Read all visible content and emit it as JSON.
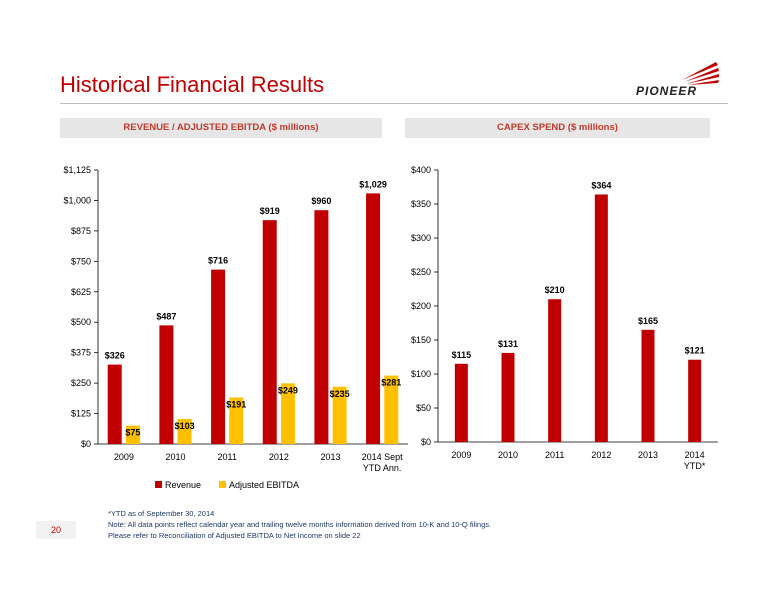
{
  "page": {
    "title": "Historical Financial Results",
    "logo_text": "PIONEER",
    "page_number": "20"
  },
  "banners": {
    "left": "REVENUE / ADJUSTED EBITDA ($ millions)",
    "right": "CAPEX SPEND ($ millions)"
  },
  "notes": [
    "*YTD as of September 30, 2014",
    "Note: All data points reflect calendar year and trailing twelve months information derived from 10-K and 10-Q filings.",
    "Please refer to Reconciliation of Adjusted EBITDA to Net Income on slide 22"
  ],
  "colors": {
    "accent": "#c00000",
    "revenue": "#c00000",
    "ebitda": "#ffc000",
    "capex": "#c00000"
  },
  "chart_data": [
    {
      "type": "bar",
      "categories": [
        "2009",
        "2010",
        "2011",
        "2012",
        "2013",
        "2014 Sept YTD Ann."
      ],
      "series": [
        {
          "name": "Revenue",
          "values": [
            326,
            487,
            716,
            919,
            960,
            1029
          ],
          "labels": [
            "$326",
            "$487",
            "$716",
            "$919",
            "$960",
            "$1,029"
          ]
        },
        {
          "name": "Adjusted EBITDA",
          "values": [
            75,
            103,
            191,
            249,
            235,
            281
          ],
          "labels": [
            "$75",
            "$103",
            "$191",
            "$249",
            "$235",
            "$281"
          ]
        }
      ],
      "ylim": [
        0,
        1125
      ],
      "yticks": [
        "$0",
        "$125",
        "$250",
        "$375",
        "$500",
        "$625",
        "$750",
        "$875",
        "$1,000",
        "$1,125"
      ],
      "legend": "bottom",
      "grid": false
    },
    {
      "type": "bar",
      "categories": [
        "2009",
        "2010",
        "2011",
        "2012",
        "2013",
        "2014 YTD*"
      ],
      "series": [
        {
          "values": [
            115,
            131,
            210,
            364,
            165,
            121
          ],
          "labels": [
            "$115",
            "$131",
            "$210",
            "$364",
            "$165",
            "$121"
          ]
        }
      ],
      "ylim": [
        0,
        400
      ],
      "yticks": [
        "$0",
        "$50",
        "$100",
        "$150",
        "$200",
        "$250",
        "$300",
        "$350",
        "$400"
      ],
      "grid": false
    }
  ]
}
